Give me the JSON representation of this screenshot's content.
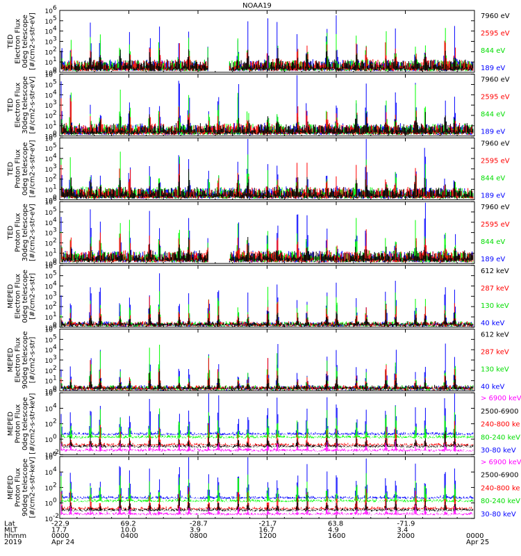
{
  "chart_data": {
    "type": "line",
    "title": "NOAA19",
    "colors": {
      "blue": "#0000ff",
      "red": "#ff0000",
      "green": "#00ff00",
      "black": "#000000",
      "magenta": "#ff00ff"
    },
    "x_date_start": "2019-04-24 00:00",
    "x_date_end": "2019-04-25 00:00",
    "panels": [
      {
        "ylabel": [
          "TED",
          "Electron Flux",
          "0deg telescope",
          "[#/cm2-s-str-eV]"
        ],
        "ylim_exp": [
          0,
          6
        ],
        "ticks": [
          "10",
          "10",
          "10",
          "10",
          "10",
          "10",
          "10"
        ],
        "tick_exps": [
          "0",
          "1",
          "2",
          "3",
          "4",
          "5",
          "6"
        ],
        "series": [
          {
            "name": "7960 eV",
            "color": "#000000"
          },
          {
            "name": "2595 eV",
            "color": "#ff0000"
          },
          {
            "name": "844 eV",
            "color": "#00ff00"
          },
          {
            "name": "189 eV",
            "color": "#0000ff"
          }
        ]
      },
      {
        "ylabel": [
          "TED",
          "Electron Flux",
          "30deg telescope",
          "[#/cm2-s-str-eV]"
        ],
        "ylim_exp": [
          0,
          6
        ],
        "ticks": [
          "10",
          "10",
          "10",
          "10",
          "10",
          "10",
          "10"
        ],
        "tick_exps": [
          "0",
          "1",
          "2",
          "3",
          "4",
          "5",
          "6"
        ],
        "series": [
          {
            "name": "7960 eV",
            "color": "#000000"
          },
          {
            "name": "2595 eV",
            "color": "#ff0000"
          },
          {
            "name": "844 eV",
            "color": "#00ff00"
          },
          {
            "name": "189 eV",
            "color": "#0000ff"
          }
        ]
      },
      {
        "ylabel": [
          "TED",
          "Proton Flux",
          "0deg telescope",
          "[#/cm2-s-str-eV]"
        ],
        "ylim_exp": [
          0,
          6
        ],
        "ticks": [
          "10",
          "10",
          "10",
          "10",
          "10",
          "10",
          "10"
        ],
        "tick_exps": [
          "0",
          "1",
          "2",
          "3",
          "4",
          "5",
          "6"
        ],
        "series": [
          {
            "name": "7960 eV",
            "color": "#000000"
          },
          {
            "name": "2595 eV",
            "color": "#ff0000"
          },
          {
            "name": "844 eV",
            "color": "#00ff00"
          },
          {
            "name": "189 eV",
            "color": "#0000ff"
          }
        ]
      },
      {
        "ylabel": [
          "TED",
          "Proton Flux",
          "30deg telescope",
          "[#/cm2-s-str-eV]"
        ],
        "ylim_exp": [
          0,
          6
        ],
        "ticks": [
          "10",
          "10",
          "10",
          "10",
          "10",
          "10",
          "10"
        ],
        "tick_exps": [
          "0",
          "1",
          "2",
          "3",
          "4",
          "5",
          "6"
        ],
        "series": [
          {
            "name": "7960 eV",
            "color": "#000000"
          },
          {
            "name": "2595 eV",
            "color": "#ff0000"
          },
          {
            "name": "844 eV",
            "color": "#00ff00"
          },
          {
            "name": "189 eV",
            "color": "#0000ff"
          }
        ]
      },
      {
        "ylabel": [
          "MEPED",
          "Electron Flux",
          "0deg telescope",
          "[#/cm2-s-str]"
        ],
        "ylim_exp": [
          2,
          6
        ],
        "ticks": [
          "10",
          "10",
          "10",
          "10",
          "10",
          "10",
          "10"
        ],
        "tick_exps": [
          "0",
          "1",
          "2",
          "3",
          "4",
          "5",
          "6"
        ],
        "series": [
          {
            "name": "612 keV",
            "color": "#000000"
          },
          {
            "name": "287 keV",
            "color": "#ff0000"
          },
          {
            "name": "130 keV",
            "color": "#00ff00"
          },
          {
            "name": "40 keV",
            "color": "#0000ff"
          }
        ]
      },
      {
        "ylabel": [
          "MEPED",
          "Electron Flux",
          "90deg telescope",
          "[#/cm2-s-str]"
        ],
        "ylim_exp": [
          2,
          6
        ],
        "ticks": [
          "10",
          "10",
          "10",
          "10",
          "10",
          "10",
          "10"
        ],
        "tick_exps": [
          "0",
          "1",
          "2",
          "3",
          "4",
          "5",
          "6"
        ],
        "series": [
          {
            "name": "612 keV",
            "color": "#000000"
          },
          {
            "name": "287 keV",
            "color": "#ff0000"
          },
          {
            "name": "130 keV",
            "color": "#00ff00"
          },
          {
            "name": "40 keV",
            "color": "#0000ff"
          }
        ]
      },
      {
        "ylabel": [
          "MEPED",
          "Proton Flux",
          "0deg telescope",
          "[#/cm2-s-str-keV]"
        ],
        "ylim_exp": [
          -2,
          6
        ],
        "ticks": [
          "10",
          "10",
          "10",
          "10",
          "10"
        ],
        "tick_exps": [
          "-2",
          "0",
          "2",
          "4",
          "6"
        ],
        "series": [
          {
            "name": "> 6900 keV",
            "color": "#ff00ff"
          },
          {
            "name": "2500-6900",
            "color": "#000000"
          },
          {
            "name": "240-800 ke",
            "color": "#ff0000"
          },
          {
            "name": "80-240 keV",
            "color": "#00ff00"
          },
          {
            "name": "30-80 keV",
            "color": "#0000ff"
          }
        ]
      },
      {
        "ylabel": [
          "MEPED",
          "Proton Flux",
          "90deg telescope",
          "[#/cm2-s-str-keV]"
        ],
        "ylim_exp": [
          -2,
          6
        ],
        "ticks": [
          "10",
          "10",
          "10",
          "10",
          "10"
        ],
        "tick_exps": [
          "-2",
          "0",
          "2",
          "4",
          "6"
        ],
        "series": [
          {
            "name": "> 6900 keV",
            "color": "#ff00ff"
          },
          {
            "name": "2500-6900",
            "color": "#000000"
          },
          {
            "name": "240-800 ke",
            "color": "#ff0000"
          },
          {
            "name": "80-240 keV",
            "color": "#00ff00"
          },
          {
            "name": "30-80 keV",
            "color": "#0000ff"
          }
        ]
      }
    ],
    "x_axis": {
      "row_labels": [
        "Lat",
        "MLT",
        "hhmm",
        "2019"
      ],
      "columns": [
        {
          "t_hours": 0,
          "lat": "-22.9",
          "mlt": "17.7",
          "hhmm": "0000",
          "date": "Apr 24"
        },
        {
          "t_hours": 4,
          "lat": "69.2",
          "mlt": "10.0",
          "hhmm": "0400",
          "date": ""
        },
        {
          "t_hours": 8,
          "lat": "-28.7",
          "mlt": "3.9",
          "hhmm": "0800",
          "date": ""
        },
        {
          "t_hours": 12,
          "lat": "-21.7",
          "mlt": "16.7",
          "hhmm": "1200",
          "date": ""
        },
        {
          "t_hours": 16,
          "lat": "63.8",
          "mlt": "4.9",
          "hhmm": "1600",
          "date": ""
        },
        {
          "t_hours": 20,
          "lat": "-71.9",
          "mlt": "3.4",
          "hhmm": "2000",
          "date": ""
        },
        {
          "t_hours": 24,
          "lat": "",
          "mlt": "",
          "hhmm": "0000",
          "date": "Apr 25"
        }
      ]
    }
  }
}
